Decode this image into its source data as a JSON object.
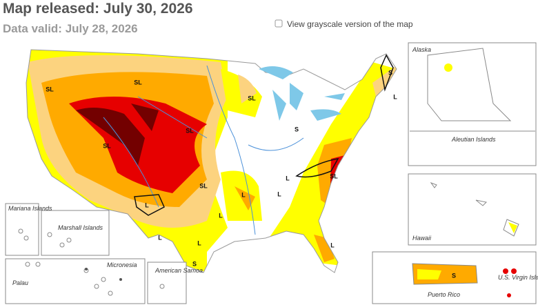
{
  "header": {
    "released": "Map released: July 30, 2026",
    "valid": "Data valid: July 28, 2026"
  },
  "grayscale_toggle": "View grayscale version of the map",
  "insets": {
    "alaska": "Alaska",
    "aleutian": "Aleutian Islands",
    "hawaii": "Hawaii",
    "puerto_rico": "Puerto Rico",
    "virgin_islands": "U.S. Virgin Islands",
    "mariana": "Mariana Islands",
    "marshall": "Marshall Islands",
    "micronesia": "Micronesia",
    "palau": "Palau",
    "samoa": "American Samoa"
  },
  "map_labels": [
    "SL",
    "SL",
    "SL",
    "SL",
    "SL",
    "S",
    "L",
    "S",
    "L",
    "SL",
    "L",
    "L",
    "L",
    "L",
    "SL",
    "L",
    "L",
    "S",
    "L",
    "S"
  ]
}
